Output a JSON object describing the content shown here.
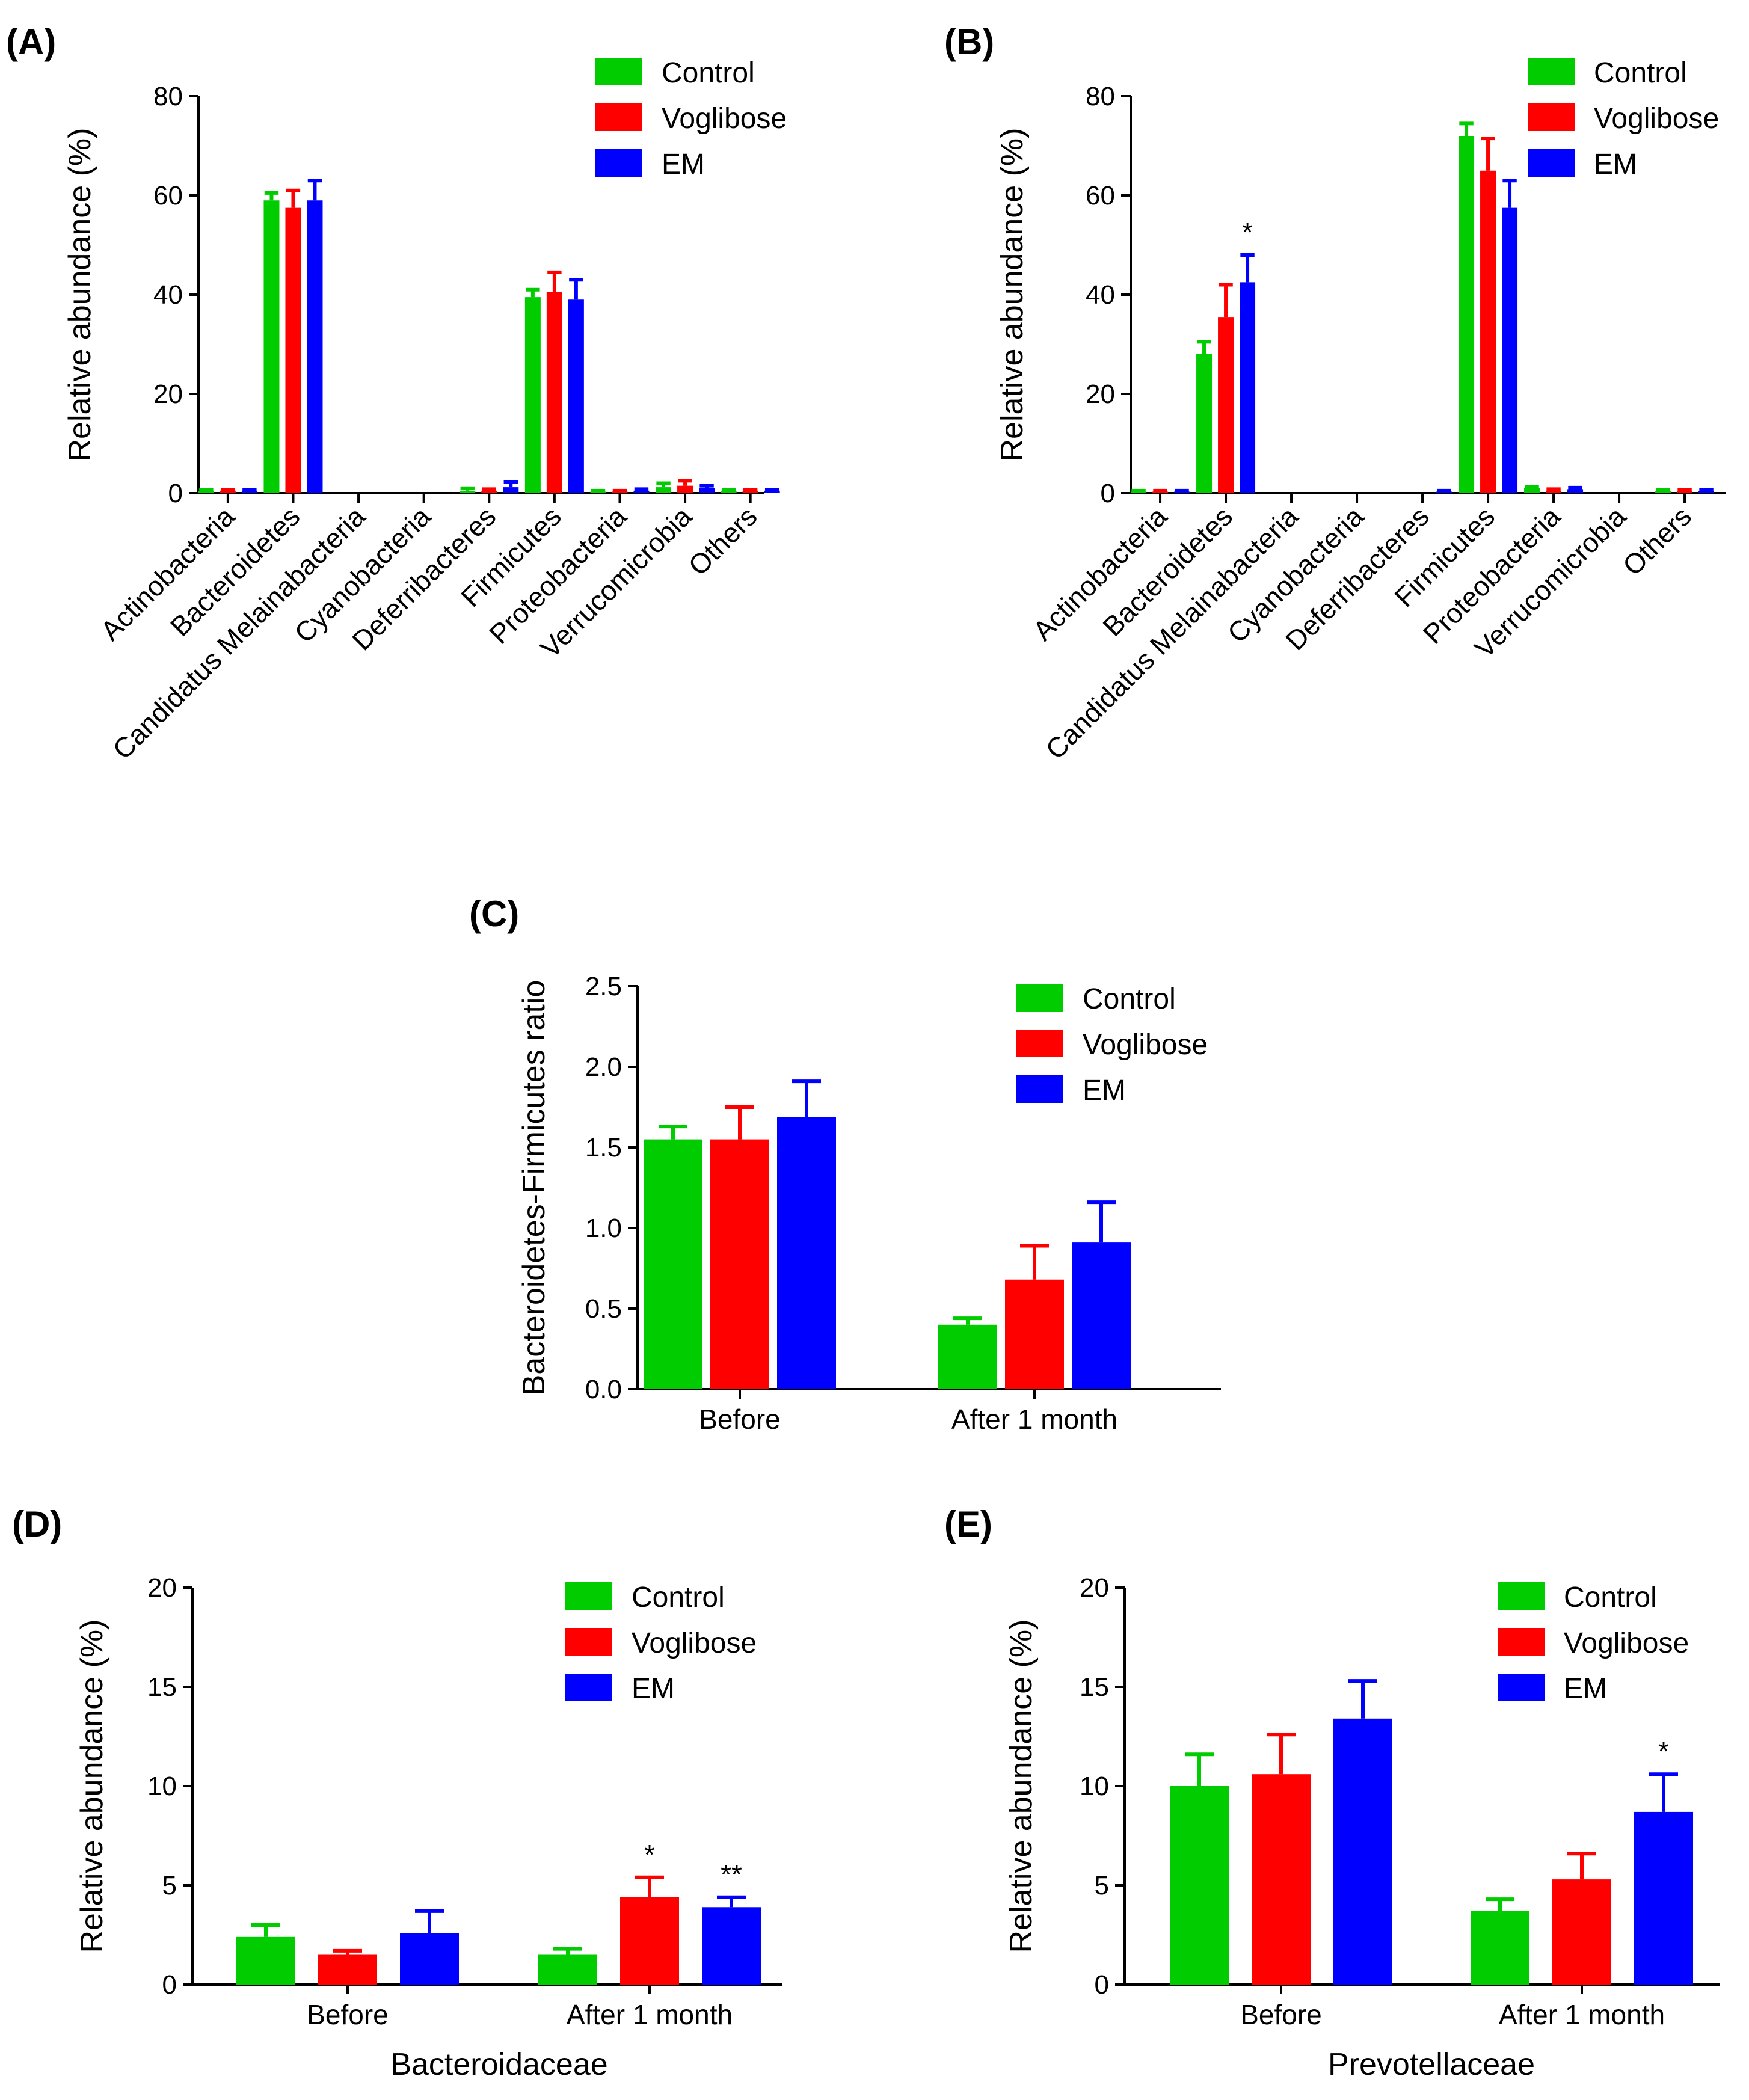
{
  "colors": {
    "Control": "#00cc00",
    "Voglibose": "#ff0000",
    "EM": "#0000ff"
  },
  "legend": [
    "Control",
    "Voglibose",
    "EM"
  ],
  "chart_data": [
    {
      "id": "A",
      "label": "(A)",
      "type": "bar",
      "ylabel": "Relative abundance (%)",
      "xlabel": "",
      "ylim": [
        0,
        80
      ],
      "yticks": [
        0,
        20,
        40,
        60,
        80
      ],
      "ytick_labels": [
        "0",
        "20",
        "40",
        "60",
        "80"
      ],
      "categories": [
        "Actinobacteria",
        "Bacteroidetes",
        "Candidatus Melainabacteria",
        "Cyanobacteria",
        "Deferribacteres",
        "Firmicutes",
        "Proteobacteria",
        "Verrucomicrobia",
        "Others"
      ],
      "series": [
        {
          "name": "Control",
          "values": [
            0.5,
            59,
            0,
            0,
            0.5,
            39.5,
            0.3,
            1.2,
            0.5
          ],
          "errors": [
            0.2,
            1.5,
            0,
            0,
            0.5,
            1.5,
            0.2,
            0.8,
            0.2
          ]
        },
        {
          "name": "Voglibose",
          "values": [
            0.5,
            57.5,
            0,
            0,
            0.5,
            40.5,
            0.3,
            1.5,
            0.5
          ],
          "errors": [
            0.2,
            3.5,
            0,
            0,
            0.3,
            4,
            0.2,
            1,
            0.2
          ]
        },
        {
          "name": "EM",
          "values": [
            0.5,
            59,
            0,
            0,
            1.2,
            39,
            0.5,
            1,
            0.5
          ],
          "errors": [
            0.2,
            4,
            0,
            0,
            1,
            4,
            0.3,
            0.5,
            0.2
          ]
        }
      ],
      "annotations": []
    },
    {
      "id": "B",
      "label": "(B)",
      "type": "bar",
      "ylabel": "Relative abundance (%)",
      "xlabel": "",
      "ylim": [
        0,
        80
      ],
      "yticks": [
        0,
        20,
        40,
        60,
        80
      ],
      "ytick_labels": [
        "0",
        "20",
        "40",
        "60",
        "80"
      ],
      "categories": [
        "Actinobacteria",
        "Bacteroidetes",
        "Candidatus Melainabacteria",
        "Cyanobacteria",
        "Deferribacteres",
        "Firmicutes",
        "Proteobacteria",
        "Verrucomicrobia",
        "Others"
      ],
      "series": [
        {
          "name": "Control",
          "values": [
            0.3,
            28,
            0,
            0,
            0.1,
            72,
            1.0,
            0.1,
            0.4
          ],
          "errors": [
            0.2,
            2.5,
            0,
            0,
            0,
            2.5,
            0.3,
            0,
            0.2
          ]
        },
        {
          "name": "Voglibose",
          "values": [
            0.3,
            35.5,
            0,
            0,
            0.1,
            65,
            0.5,
            0.1,
            0.4
          ],
          "errors": [
            0.2,
            6.5,
            0,
            0,
            0,
            6.5,
            0.3,
            0,
            0.2
          ]
        },
        {
          "name": "EM",
          "values": [
            0.3,
            42.5,
            0,
            0,
            0.3,
            57.5,
            0.8,
            0.1,
            0.4
          ],
          "errors": [
            0.2,
            5.5,
            0,
            0,
            0.2,
            5.5,
            0.3,
            0,
            0.2
          ]
        }
      ],
      "annotations": [
        {
          "category": 1,
          "series": 2,
          "text": "*"
        }
      ]
    },
    {
      "id": "C",
      "label": "(C)",
      "type": "bar",
      "ylabel": "Bacteroidetes-Firmicutes ratio",
      "xlabel": "",
      "ylim": [
        0,
        2.5
      ],
      "yticks": [
        0,
        0.5,
        1.0,
        1.5,
        2.0,
        2.5
      ],
      "ytick_labels": [
        "0.0",
        "0.5",
        "1.0",
        "1.5",
        "2.0",
        "2.5"
      ],
      "categories": [
        "Before",
        "After 1 month"
      ],
      "series": [
        {
          "name": "Control",
          "values": [
            1.55,
            0.4
          ],
          "errors": [
            0.08,
            0.04
          ]
        },
        {
          "name": "Voglibose",
          "values": [
            1.55,
            0.68
          ],
          "errors": [
            0.2,
            0.21
          ]
        },
        {
          "name": "EM",
          "values": [
            1.69,
            0.91
          ],
          "errors": [
            0.22,
            0.25
          ]
        }
      ],
      "annotations": []
    },
    {
      "id": "D",
      "label": "(D)",
      "type": "bar",
      "ylabel": "Relative abundance (%)",
      "xlabel": "Bacteroidaceae",
      "ylim": [
        0,
        20
      ],
      "yticks": [
        0,
        5,
        10,
        15,
        20
      ],
      "ytick_labels": [
        "0",
        "5",
        "10",
        "15",
        "20"
      ],
      "categories": [
        "Before",
        "After 1 month"
      ],
      "series": [
        {
          "name": "Control",
          "values": [
            2.4,
            1.5
          ],
          "errors": [
            0.6,
            0.3
          ]
        },
        {
          "name": "Voglibose",
          "values": [
            1.5,
            4.4
          ],
          "errors": [
            0.2,
            1.0
          ]
        },
        {
          "name": "EM",
          "values": [
            2.6,
            3.9
          ],
          "errors": [
            1.1,
            0.5
          ]
        }
      ],
      "annotations": [
        {
          "category": 1,
          "series": 1,
          "text": "*"
        },
        {
          "category": 1,
          "series": 2,
          "text": "**"
        }
      ]
    },
    {
      "id": "E",
      "label": "(E)",
      "type": "bar",
      "ylabel": "Relative abundance (%)",
      "xlabel": "Prevotellaceae",
      "ylim": [
        0,
        20
      ],
      "yticks": [
        0,
        5,
        10,
        15,
        20
      ],
      "ytick_labels": [
        "0",
        "5",
        "10",
        "15",
        "20"
      ],
      "categories": [
        "Before",
        "After 1 month"
      ],
      "series": [
        {
          "name": "Control",
          "values": [
            10.0,
            3.7
          ],
          "errors": [
            1.6,
            0.6
          ]
        },
        {
          "name": "Voglibose",
          "values": [
            10.6,
            5.3
          ],
          "errors": [
            2.0,
            1.3
          ]
        },
        {
          "name": "EM",
          "values": [
            13.4,
            8.7
          ],
          "errors": [
            1.9,
            1.9
          ]
        }
      ],
      "annotations": [
        {
          "category": 1,
          "series": 2,
          "text": "*"
        }
      ]
    }
  ]
}
